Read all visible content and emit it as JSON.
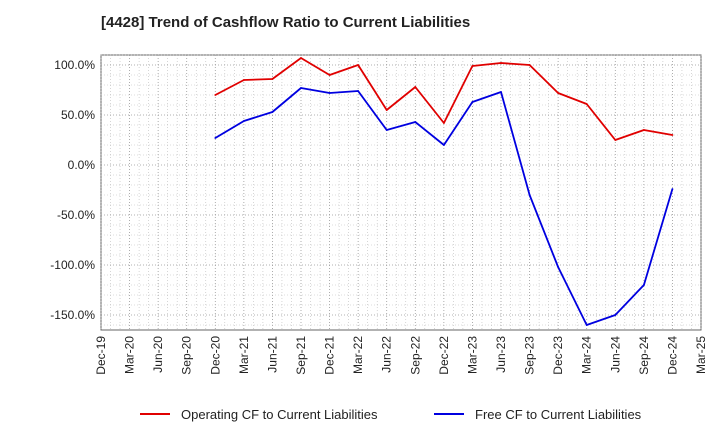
{
  "chart_data": {
    "type": "line",
    "title": "[4428]  Trend of Cashflow Ratio to Current Liabilities",
    "xlabel": "",
    "ylabel": "",
    "x_ticks": [
      "Dec-19",
      "Mar-20",
      "Jun-20",
      "Sep-20",
      "Dec-20",
      "Mar-21",
      "Jun-21",
      "Sep-21",
      "Dec-21",
      "Mar-22",
      "Jun-22",
      "Sep-22",
      "Dec-22",
      "Mar-23",
      "Jun-23",
      "Sep-23",
      "Dec-23",
      "Mar-24",
      "Jun-24",
      "Sep-24",
      "Dec-24",
      "Mar-25"
    ],
    "y_ticks": [
      100,
      50,
      0,
      -50,
      -100,
      -150
    ],
    "y_tick_labels": [
      "100.0%",
      "50.0%",
      "0.0%",
      "-50.0%",
      "-100.0%",
      "-150.0%"
    ],
    "ylim": [
      -165,
      110
    ],
    "grid": true,
    "legend": "bottom",
    "x": [
      "Dec-20",
      "Mar-21",
      "Jun-21",
      "Sep-21",
      "Dec-21",
      "Mar-22",
      "Jun-22",
      "Sep-22",
      "Dec-22",
      "Mar-23",
      "Jun-23",
      "Sep-23",
      "Dec-23",
      "Mar-24",
      "Jun-24",
      "Sep-24",
      "Dec-24"
    ],
    "series": [
      {
        "name": "Operating CF to Current Liabilities",
        "color": "#e00000",
        "values": [
          70,
          85,
          86,
          107,
          90,
          100,
          55,
          78,
          42,
          99,
          102,
          100,
          72,
          61,
          25,
          35,
          30
        ]
      },
      {
        "name": "Free CF to Current Liabilities",
        "color": "#0000e0",
        "values": [
          27,
          44,
          53,
          77,
          72,
          74,
          35,
          43,
          20,
          63,
          73,
          -30,
          -102,
          -160,
          -150,
          -120,
          -24
        ]
      }
    ]
  }
}
